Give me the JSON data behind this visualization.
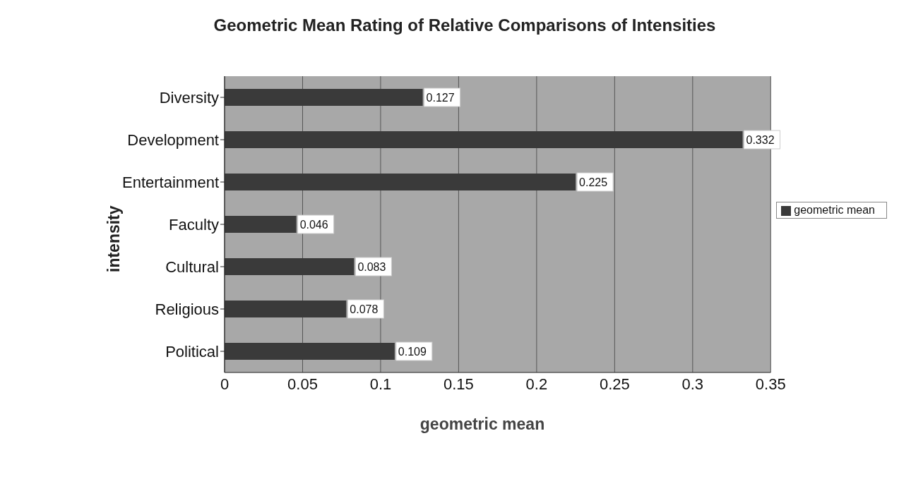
{
  "chart_data": {
    "type": "bar",
    "orientation": "horizontal",
    "title": "Geometric Mean Rating of Relative Comparisons of Intensities",
    "xlabel": "geometric mean",
    "ylabel": "intensity",
    "categories": [
      "Diversity",
      "Development",
      "Entertainment",
      "Faculty",
      "Cultural",
      "Religious",
      "Political"
    ],
    "series": [
      {
        "name": "geometric mean",
        "color": "#3a3a3a",
        "values": [
          0.127,
          0.332,
          0.225,
          0.046,
          0.083,
          0.078,
          0.109
        ]
      }
    ],
    "xlim": [
      0,
      0.35
    ],
    "xticks": [
      0,
      0.05,
      0.1,
      0.15,
      0.2,
      0.25,
      0.3,
      0.35
    ],
    "grid": "x",
    "legend": "right",
    "data_labels": true
  }
}
